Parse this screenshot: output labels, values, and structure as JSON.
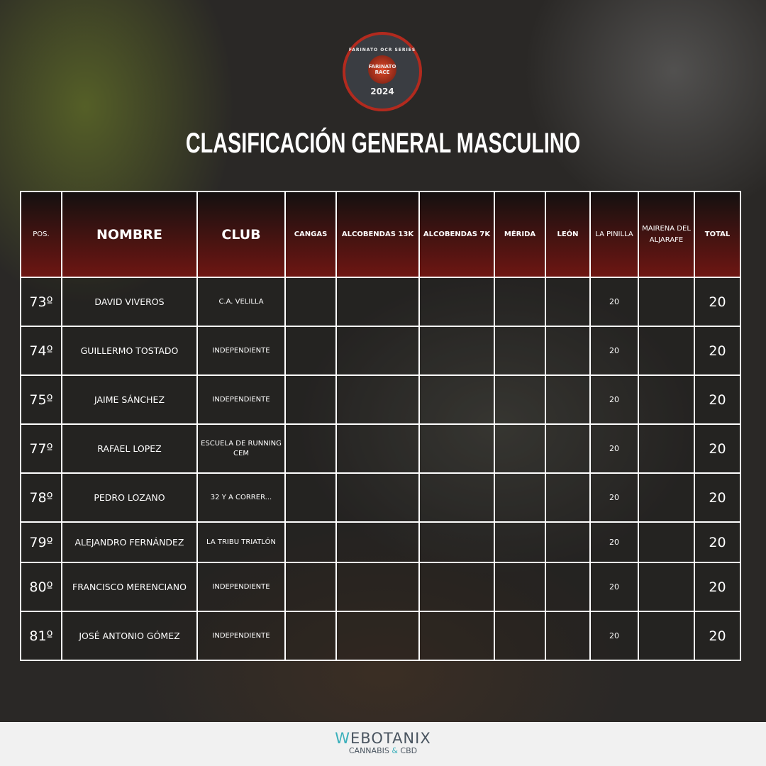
{
  "logo": {
    "text": "FARINATO OCR SERIES",
    "inner": "FARINATO RACE",
    "year": "2024"
  },
  "title": "CLASIFICACIÓN GENERAL MASCULINO",
  "headers": [
    "POS.",
    "NOMBRE",
    "CLUB",
    "CANGAS",
    "ALCOBENDAS 13K",
    "ALCOBENDAS 7K",
    "MÉRIDA",
    "LEÓN",
    "LA PINILLA",
    "MAIRENA DEL ALJARAFE",
    "TOTAL"
  ],
  "rows": [
    {
      "pos": "73º",
      "name": "DAVID VIVEROS",
      "club": "C.A. VELILLA",
      "la_pinilla": "20",
      "total": "20"
    },
    {
      "pos": "74º",
      "name": "GUILLERMO TOSTADO",
      "club": "INDEPENDIENTE",
      "la_pinilla": "20",
      "total": "20"
    },
    {
      "pos": "75º",
      "name": "JAIME SÁNCHEZ",
      "club": "INDEPENDIENTE",
      "la_pinilla": "20",
      "total": "20"
    },
    {
      "pos": "77º",
      "name": "RAFAEL LOPEZ",
      "club": "ESCUELA DE RUNNING CEM",
      "la_pinilla": "20",
      "total": "20"
    },
    {
      "pos": "78º",
      "name": "PEDRO LOZANO",
      "club": "32 Y A CORRER...",
      "la_pinilla": "20",
      "total": "20"
    },
    {
      "pos": "79º",
      "name": "ALEJANDRO FERNÁNDEZ",
      "club": "LA TRIBU TRIATLÓN",
      "la_pinilla": "20",
      "total": "20"
    },
    {
      "pos": "80º",
      "name": "FRANCISCO MERENCIANO",
      "club": "INDEPENDIENTE",
      "la_pinilla": "20",
      "total": "20"
    },
    {
      "pos": "81º",
      "name": "JOSÉ ANTONIO GÓMEZ",
      "club": "INDEPENDIENTE",
      "la_pinilla": "20",
      "total": "20"
    }
  ],
  "footer": {
    "brand_initial": "W",
    "brand_rest": "EBOTANIX",
    "sub_left": "CANNABIS ",
    "sub_amp": "&",
    "sub_right": " CBD"
  },
  "colors": {
    "header_red": "#6e1612",
    "logo_ring": "#b22a1e",
    "brand_teal": "#3bb0bb"
  }
}
